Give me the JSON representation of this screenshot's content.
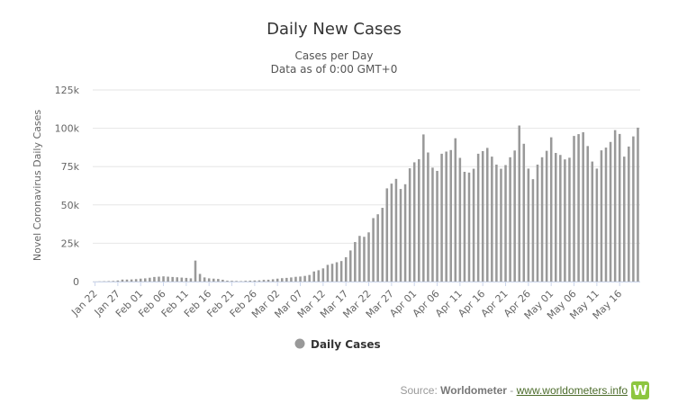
{
  "chart_data": {
    "type": "bar",
    "title": "Daily New Cases",
    "subtitles": [
      "Cases per Day",
      "Data as of 0:00 GMT+0"
    ],
    "xlabel": "",
    "ylabel": "Novel Coronavirus Daily Cases",
    "ylim": [
      0,
      125000
    ],
    "yticks": [
      0,
      25000,
      50000,
      75000,
      100000,
      125000
    ],
    "ytick_labels": [
      "0",
      "25k",
      "50k",
      "75k",
      "100k",
      "125k"
    ],
    "grid": true,
    "legend": "bottom-center",
    "x_start": "Jan 22",
    "x_tick_labels": [
      "Jan 22",
      "Jan 27",
      "Feb 01",
      "Feb 06",
      "Feb 11",
      "Feb 16",
      "Feb 21",
      "Feb 26",
      "Mar 02",
      "Mar 07",
      "Mar 12",
      "Mar 17",
      "Mar 22",
      "Mar 27",
      "Apr 01",
      "Apr 06",
      "Apr 11",
      "Apr 16",
      "Apr 21",
      "Apr 26",
      "May 01",
      "May 06",
      "May 11",
      "May 16"
    ],
    "series": [
      {
        "name": "Daily Cases",
        "color": "#999999",
        "values": [
          0,
          100,
          200,
          300,
          400,
          700,
          1300,
          1300,
          1400,
          1600,
          1900,
          2100,
          2500,
          3000,
          3200,
          3400,
          3200,
          3000,
          2800,
          2600,
          2400,
          2100,
          13700,
          5000,
          2700,
          2100,
          1900,
          1700,
          1200,
          600,
          500,
          400,
          300,
          500,
          600,
          700,
          800,
          1100,
          1200,
          1500,
          1900,
          2200,
          2400,
          2700,
          3100,
          3300,
          3700,
          4300,
          6600,
          7400,
          8600,
          10900,
          11600,
          12600,
          13400,
          15900,
          20300,
          25800,
          29800,
          29200,
          32100,
          41400,
          43900,
          48100,
          60800,
          63900,
          67000,
          60400,
          63500,
          73900,
          77800,
          79800,
          96000,
          84200,
          74300,
          72200,
          83400,
          84800,
          85800,
          93500,
          80700,
          71600,
          71100,
          73600,
          83400,
          85100,
          87200,
          81500,
          76300,
          73600,
          76000,
          81100,
          85500,
          101800,
          89900,
          73700,
          66800,
          76300,
          81100,
          85300,
          94100,
          83900,
          82600,
          79700,
          80800,
          95000,
          96200,
          97400,
          88400,
          78300,
          73700,
          85600,
          87400,
          91100,
          98800,
          96300,
          81500,
          88100,
          94700,
          100400
        ]
      }
    ],
    "source_label": "Source:",
    "source_name": "Worldometer",
    "source_sep": "-",
    "source_url": "www.worldometers.info",
    "logo_letter": "W"
  }
}
